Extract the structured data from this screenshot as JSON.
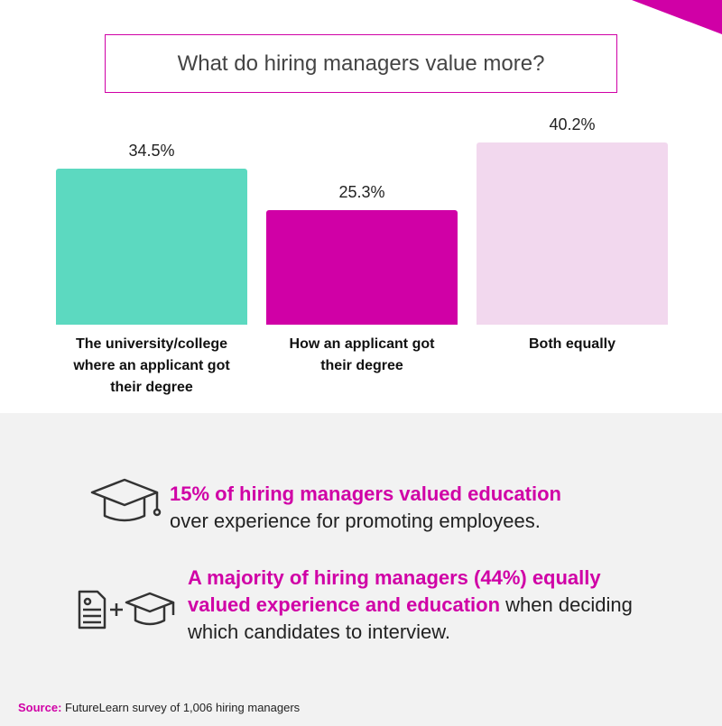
{
  "chart_data": {
    "type": "bar",
    "title": "What do hiring managers value more?",
    "categories": [
      "The university/college where an applicant got their degree",
      "How an applicant got their degree",
      "Both equally"
    ],
    "values": [
      34.5,
      25.3,
      40.2
    ],
    "value_labels": [
      "34.5%",
      "25.3%",
      "40.2%"
    ],
    "colors": [
      "#5cd9c0",
      "#d000a6",
      "#f2d8ee"
    ]
  },
  "callouts": [
    {
      "highlight": "15% of hiring managers valued education",
      "text": "over experience for promoting employees."
    },
    {
      "highlight": "A majority of hiring managers (44%) equally valued experience and education",
      "text": "when deciding which candidates to interview."
    }
  ],
  "source": {
    "label": "Source:",
    "text": "FutureLearn survey of 1,006 hiring managers"
  }
}
